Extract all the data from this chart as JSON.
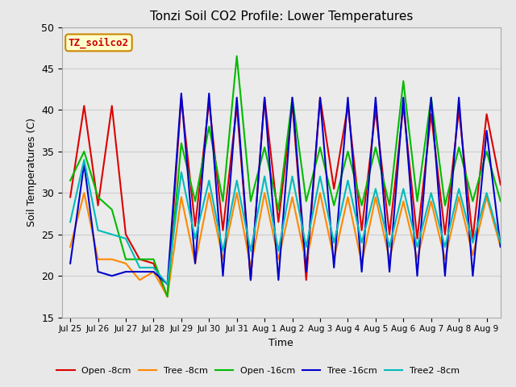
{
  "title": "Tonzi Soil CO2 Profile: Lower Temperatures",
  "xlabel": "Time",
  "ylabel": "Soil Temperatures (C)",
  "watermark": "TZ_soilco2",
  "ylim": [
    15,
    50
  ],
  "fig_bg": "#e8e8e8",
  "ax_bg": "#ebebeb",
  "xtick_labels": [
    "Jul 25",
    "Jul 26",
    "Jul 27",
    "Jul 28",
    "Jul 29",
    "Jul 30",
    "Jul 31",
    "Aug 1",
    "Aug 2",
    "Aug 3",
    "Aug 4",
    "Aug 5",
    "Aug 6",
    "Aug 7",
    "Aug 8",
    "Aug 9"
  ],
  "series_names": [
    "Open -8cm",
    "Tree -8cm",
    "Open -16cm",
    "Tree -16cm",
    "Tree2 -8cm"
  ],
  "series_colors": [
    "#dd0000",
    "#ff8800",
    "#00bb00",
    "#0000cc",
    "#00bbbb"
  ],
  "Open_8cm": [
    29.5,
    40.5,
    28.5,
    40.5,
    25.0,
    22.0,
    21.5,
    17.5,
    41.5,
    26.0,
    41.0,
    25.5,
    40.5,
    19.5,
    41.5,
    26.5,
    40.8,
    19.5,
    41.5,
    30.5,
    40.5,
    25.5,
    40.0,
    25.0,
    40.5,
    24.5,
    39.5,
    25.0,
    40.0,
    24.5,
    39.5,
    31.0
  ],
  "Tree_8cm": [
    23.5,
    30.0,
    22.0,
    22.0,
    21.5,
    19.5,
    20.5,
    17.5,
    29.5,
    21.5,
    30.0,
    22.0,
    30.0,
    21.0,
    30.0,
    22.0,
    29.5,
    21.5,
    30.0,
    22.0,
    29.5,
    21.5,
    29.5,
    22.0,
    29.0,
    22.0,
    29.0,
    22.0,
    29.5,
    22.5,
    29.5,
    23.5
  ],
  "Open_16cm": [
    31.5,
    35.0,
    29.5,
    28.0,
    22.0,
    22.0,
    22.0,
    17.5,
    36.0,
    29.0,
    38.0,
    29.0,
    46.5,
    29.0,
    35.5,
    28.0,
    41.5,
    29.0,
    35.5,
    28.5,
    35.0,
    28.5,
    35.5,
    28.5,
    43.5,
    29.0,
    41.5,
    28.5,
    35.5,
    29.0,
    35.0,
    29.0
  ],
  "Tree_16cm": [
    21.5,
    33.5,
    20.5,
    20.0,
    20.5,
    20.5,
    20.5,
    19.0,
    42.0,
    21.5,
    42.0,
    20.0,
    41.5,
    19.5,
    41.5,
    19.5,
    41.5,
    20.5,
    41.5,
    21.0,
    41.5,
    20.5,
    41.5,
    20.5,
    41.5,
    20.0,
    41.5,
    20.0,
    41.5,
    20.0,
    37.5,
    23.5
  ],
  "Tree2_8cm": [
    26.5,
    34.0,
    25.5,
    25.0,
    24.5,
    21.0,
    21.0,
    19.0,
    32.5,
    24.5,
    31.5,
    23.0,
    31.5,
    23.0,
    32.0,
    23.0,
    32.0,
    23.5,
    32.0,
    24.0,
    31.5,
    24.0,
    30.5,
    23.5,
    30.5,
    23.5,
    30.0,
    23.5,
    30.5,
    24.0,
    30.0,
    24.0
  ]
}
